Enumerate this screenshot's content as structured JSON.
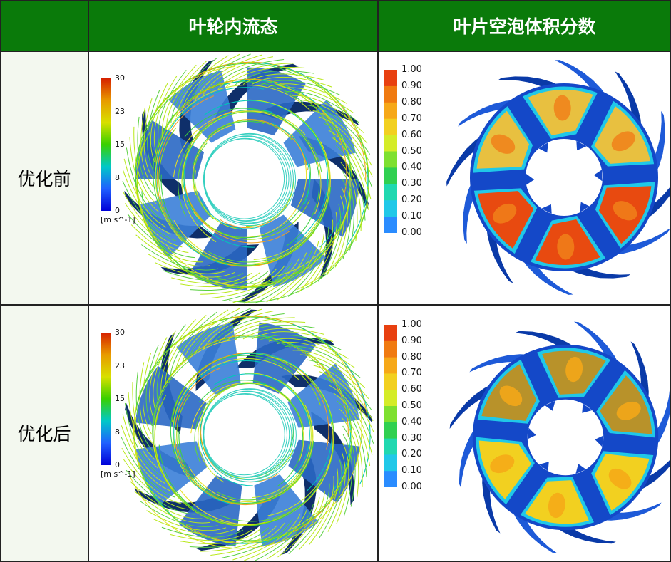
{
  "header": {
    "col1": "叶轮内流态",
    "col2": "叶片空泡体积分数"
  },
  "rows": [
    {
      "label": "优化前"
    },
    {
      "label": "优化后"
    }
  ],
  "velocity_legend": {
    "ticks": [
      "30",
      "23",
      "15",
      "8",
      "0"
    ],
    "unit": "[m s^-1]",
    "colors": [
      "#d62000",
      "#e89a00",
      "#d8e000",
      "#39d000",
      "#00c8c8",
      "#2060ff",
      "#0000d8"
    ]
  },
  "volume_fraction_legend": {
    "ticks": [
      "1.00",
      "0.90",
      "0.80",
      "0.70",
      "0.60",
      "0.50",
      "0.40",
      "0.30",
      "0.20",
      "0.10",
      "0.00"
    ],
    "colors": [
      "#e84010",
      "#f07a10",
      "#f6a818",
      "#f2d020",
      "#d4ec28",
      "#7ee030",
      "#30d050",
      "#20d8b0",
      "#20c8e8",
      "#2a8cff",
      "#1a4cf0"
    ]
  },
  "palette": {
    "header_green": "#0a7a0a",
    "row_label_bg": "#f3f8ef"
  }
}
